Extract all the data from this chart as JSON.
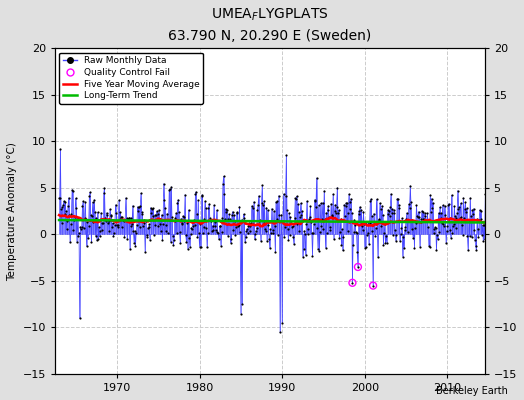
{
  "title": "UMEA$_F$LYGPLATS",
  "subtitle": "63.790 N, 20.290 E (Sweden)",
  "ylabel": "Temperature Anomaly (°C)",
  "credit": "Berkeley Earth",
  "xlim": [
    1962.5,
    2014.5
  ],
  "ylim": [
    -15,
    20
  ],
  "yticks": [
    -15,
    -10,
    -5,
    0,
    5,
    10,
    15,
    20
  ],
  "xticks": [
    1970,
    1980,
    1990,
    2000,
    2010
  ],
  "fig_bg": "#e0e0e0",
  "plot_bg": "#ffffff",
  "line_color": "#4444ff",
  "fill_color": "#aaaaff",
  "marker_color": "#000000",
  "ma_color": "#ff0000",
  "trend_color": "#00bb00",
  "qc_color": "#ff00ff",
  "start_year": 1963,
  "n_months": 624,
  "seed": 137
}
